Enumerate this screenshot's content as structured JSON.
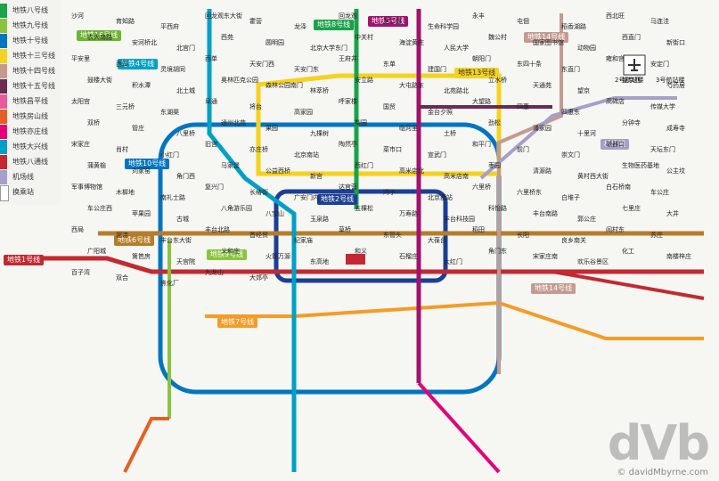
{
  "legend": [
    {
      "label": "地铁八号线",
      "color": "#1aa34a"
    },
    {
      "label": "地铁九号线",
      "color": "#8ac43f"
    },
    {
      "label": "地铁十号线",
      "color": "#0075c1"
    },
    {
      "label": "地铁十三号线",
      "color": "#f4d21f"
    },
    {
      "label": "地铁十四号线",
      "color": "#c39b8f"
    },
    {
      "label": "地铁十五号线",
      "color": "#6b2b52"
    },
    {
      "label": "地铁昌平线",
      "color": "#e75b9e"
    },
    {
      "label": "地铁房山线",
      "color": "#e46022"
    },
    {
      "label": "地铁亦庄线",
      "color": "#e40077"
    },
    {
      "label": "地铁大兴线",
      "color": "#00a0c6"
    },
    {
      "label": "地铁八通线",
      "color": "#c42830"
    },
    {
      "label": "机场线",
      "color": "#a5a0c8"
    },
    {
      "label": "换乘站",
      "color": "#ffffff"
    }
  ],
  "badges": [
    {
      "label": "地铁16号线",
      "color": "#6cb52d"
    },
    {
      "label": "地铁4号线",
      "color": "#00a0c6"
    },
    {
      "label": "地铁8号线",
      "color": "#1aa34a"
    },
    {
      "label": "地铁5号线",
      "color": "#a1126f"
    },
    {
      "label": "地铁13号线",
      "color": "#f4d21f"
    },
    {
      "label": "地铁14号线",
      "color": "#c39b8f"
    },
    {
      "label": "地铁10号线",
      "color": "#0075c1"
    },
    {
      "label": "地铁2号线",
      "color": "#1c3f94"
    },
    {
      "label": "地铁6号线",
      "color": "#b57d2b"
    },
    {
      "label": "地铁1号线",
      "color": "#c42830"
    },
    {
      "label": "地铁9号线",
      "color": "#8ac43f"
    },
    {
      "label": "地铁7号线",
      "color": "#f39c27"
    },
    {
      "label": "地铁14号线",
      "color": "#c39b8f"
    },
    {
      "label": "机场线",
      "color": "#a5a0c8"
    }
  ],
  "stations": [
    "沙河",
    "育知路",
    "平西府",
    "回龙观东大街",
    "霍营",
    "龙泽",
    "回龙观",
    "西二旗",
    "生命科学园",
    "永丰",
    "屯佃",
    "稻香湖路",
    "西北旺",
    "马连洼",
    "农大南路",
    "安河桥北",
    "北宫门",
    "西苑",
    "圆明园",
    "北京大学东门",
    "中关村",
    "海淀黄庄",
    "人民大学",
    "魏公村",
    "国家图书馆",
    "动物园",
    "西直门",
    "新街口",
    "平安里",
    "西四",
    "灵境胡同",
    "西单",
    "天安门西",
    "天安门东",
    "王府井",
    "东单",
    "建国门",
    "朝阳门",
    "东四十条",
    "东直门",
    "雍和宫",
    "安定门",
    "鼓楼大街",
    "积水潭",
    "北土城",
    "奥林匹克公园",
    "森林公园南门",
    "林萃桥",
    "安立路",
    "大屯路东",
    "北苑路北",
    "立水桥",
    "天通苑",
    "望京",
    "望京西",
    "芍药居",
    "太阳宫",
    "三元桥",
    "东湖渠",
    "阜通",
    "将台",
    "高家园",
    "呼家楼",
    "国贸",
    "金台夕照",
    "大望路",
    "四惠",
    "四惠东",
    "高碑店",
    "传媒大学",
    "双桥",
    "管庄",
    "八里桥",
    "通州北苑",
    "果园",
    "九棵树",
    "梨园",
    "临河里",
    "土桥",
    "劲松",
    "潘家园",
    "十里河",
    "分钟寺",
    "成寿寺",
    "宋家庄",
    "肖村",
    "小红门",
    "旧宫",
    "亦庄桥",
    "北京南站",
    "陶然亭",
    "菜市口",
    "宣武门",
    "和平门",
    "前门",
    "崇文门",
    "磁器口",
    "天坛东门",
    "蒲黄榆",
    "刘家窑",
    "角门西",
    "马家堡",
    "公益西桥",
    "新宫",
    "西红门",
    "高米店北",
    "高米店南",
    "枣园",
    "清源路",
    "黄村西大街",
    "生物医药基地",
    "公主坟",
    "军事博物馆",
    "木樨地",
    "南礼士路",
    "复兴门",
    "长椿街",
    "广安门内",
    "达官营",
    "湾子",
    "北京西站",
    "六里桥",
    "六里桥东",
    "白堆子",
    "白石桥南",
    "车公庄",
    "车公庄西",
    "苹果园",
    "古城",
    "八角游乐园",
    "八宝山",
    "玉泉路",
    "五棵松",
    "万寿路",
    "丰台科技园",
    "科怡路",
    "丰台南路",
    "郭公庄",
    "七里庄",
    "大井",
    "西局",
    "泥洼",
    "丰台东大街",
    "丰台北路",
    "首经贸",
    "纪家庙",
    "草桥",
    "东管头",
    "大葆台",
    "稻田",
    "长阳",
    "良乡南关",
    "阎村东",
    "苏庄",
    "广阳城",
    "篱笆房",
    "天宫院",
    "义和庄",
    "火箭万源",
    "东高地",
    "和义",
    "石榴庄",
    "大红门",
    "角门东",
    "宋家庄南",
    "欢乐谷景区",
    "化工",
    "南楼梓庄",
    "百子湾",
    "双合",
    "焦化厂",
    "九龙山",
    "大郊亭"
  ],
  "airport": [
    "2号航站楼",
    "3号航站楼"
  ],
  "watermark": {
    "logo": "dVb",
    "url": "© davidMbyrne.com"
  }
}
